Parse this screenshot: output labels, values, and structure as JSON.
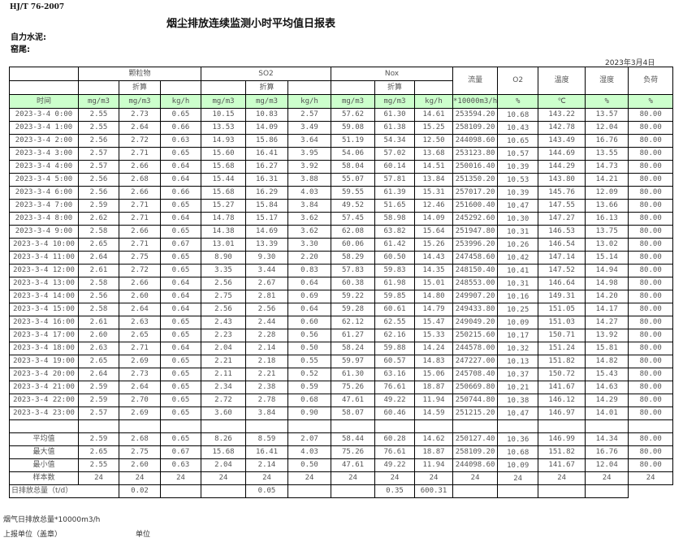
{
  "header": {
    "standard": "HJ/T  76-2007",
    "title": "烟尘排放连续监测小时平均值日报表",
    "company": "自力水泥:",
    "kiln": "窑尾:",
    "date": "2023年3月4日"
  },
  "table": {
    "groups": {
      "particulate": "颗粒物",
      "so2": "SO2",
      "nox": "Nox",
      "flow": "流量",
      "o2": "O2",
      "temp": "温度",
      "humidity": "湿度",
      "load": "负荷"
    },
    "converted_label": "折算",
    "units": [
      "时间",
      "mg/m3",
      "mg/m3",
      "kg/h",
      "mg/m3",
      "mg/m3",
      "kg/h",
      "mg/m3",
      "mg/m3",
      "kg/h",
      "*10000m3/h",
      "%",
      "℃",
      "%",
      "%"
    ],
    "rows": [
      [
        "2023-3-4 0:00",
        "2.55",
        "2.73",
        "0.65",
        "10.15",
        "10.83",
        "2.57",
        "57.62",
        "61.30",
        "14.61",
        "253594.20",
        "10.68",
        "143.22",
        "13.57",
        "80.00"
      ],
      [
        "2023-3-4 1:00",
        "2.55",
        "2.64",
        "0.66",
        "13.53",
        "14.09",
        "3.49",
        "59.08",
        "61.38",
        "15.25",
        "258109.20",
        "10.43",
        "142.78",
        "12.04",
        "80.00"
      ],
      [
        "2023-3-4 2:00",
        "2.56",
        "2.72",
        "0.63",
        "14.93",
        "15.86",
        "3.64",
        "51.19",
        "54.34",
        "12.50",
        "244098.60",
        "10.65",
        "143.49",
        "16.76",
        "80.00"
      ],
      [
        "2023-3-4 3:00",
        "2.57",
        "2.71",
        "0.65",
        "15.60",
        "16.41",
        "3.95",
        "54.06",
        "57.02",
        "13.68",
        "253123.80",
        "10.57",
        "144.69",
        "13.55",
        "80.00"
      ],
      [
        "2023-3-4 4:00",
        "2.57",
        "2.66",
        "0.64",
        "15.68",
        "16.27",
        "3.92",
        "58.04",
        "60.14",
        "14.51",
        "250016.40",
        "10.39",
        "144.29",
        "14.73",
        "80.00"
      ],
      [
        "2023-3-4 5:00",
        "2.56",
        "2.68",
        "0.64",
        "15.44",
        "16.31",
        "3.88",
        "55.07",
        "57.81",
        "13.84",
        "251350.20",
        "10.53",
        "143.80",
        "14.21",
        "80.00"
      ],
      [
        "2023-3-4 6:00",
        "2.56",
        "2.66",
        "0.66",
        "15.68",
        "16.29",
        "4.03",
        "59.55",
        "61.39",
        "15.31",
        "257017.20",
        "10.39",
        "145.76",
        "12.09",
        "80.00"
      ],
      [
        "2023-3-4 7:00",
        "2.59",
        "2.71",
        "0.65",
        "15.27",
        "15.84",
        "3.84",
        "49.52",
        "51.65",
        "12.46",
        "251600.40",
        "10.47",
        "147.55",
        "13.66",
        "80.00"
      ],
      [
        "2023-3-4 8:00",
        "2.62",
        "2.71",
        "0.64",
        "14.78",
        "15.17",
        "3.62",
        "57.45",
        "58.98",
        "14.09",
        "245292.60",
        "10.30",
        "147.27",
        "16.13",
        "80.00"
      ],
      [
        "2023-3-4 9:00",
        "2.58",
        "2.66",
        "0.65",
        "14.38",
        "14.69",
        "3.62",
        "62.08",
        "63.82",
        "15.64",
        "251947.80",
        "10.31",
        "146.53",
        "13.75",
        "80.00"
      ],
      [
        "2023-3-4 10:00",
        "2.65",
        "2.71",
        "0.67",
        "13.01",
        "13.39",
        "3.30",
        "60.06",
        "61.42",
        "15.26",
        "253996.20",
        "10.26",
        "146.54",
        "13.02",
        "80.00"
      ],
      [
        "2023-3-4 11:00",
        "2.64",
        "2.75",
        "0.65",
        "8.90",
        "9.30",
        "2.20",
        "58.29",
        "60.50",
        "14.43",
        "247458.60",
        "10.42",
        "147.14",
        "15.14",
        "80.00"
      ],
      [
        "2023-3-4 12:00",
        "2.61",
        "2.72",
        "0.65",
        "3.35",
        "3.44",
        "0.83",
        "57.83",
        "59.83",
        "14.35",
        "248150.40",
        "10.41",
        "147.52",
        "14.94",
        "80.00"
      ],
      [
        "2023-3-4 13:00",
        "2.58",
        "2.66",
        "0.64",
        "2.56",
        "2.67",
        "0.64",
        "60.38",
        "61.98",
        "15.01",
        "248553.00",
        "10.31",
        "146.64",
        "14.98",
        "80.00"
      ],
      [
        "2023-3-4 14:00",
        "2.56",
        "2.60",
        "0.64",
        "2.75",
        "2.81",
        "0.69",
        "59.22",
        "59.85",
        "14.80",
        "249907.20",
        "10.16",
        "149.31",
        "14.20",
        "80.00"
      ],
      [
        "2023-3-4 15:00",
        "2.58",
        "2.64",
        "0.64",
        "2.56",
        "2.56",
        "0.64",
        "59.28",
        "60.61",
        "14.79",
        "249433.80",
        "10.25",
        "151.05",
        "14.17",
        "80.00"
      ],
      [
        "2023-3-4 16:00",
        "2.61",
        "2.63",
        "0.65",
        "2.43",
        "2.44",
        "0.60",
        "62.12",
        "62.55",
        "15.47",
        "249049.20",
        "10.09",
        "151.03",
        "14.27",
        "80.00"
      ],
      [
        "2023-3-4 17:00",
        "2.60",
        "2.65",
        "0.65",
        "2.23",
        "2.28",
        "0.56",
        "61.27",
        "62.16",
        "15.33",
        "250215.60",
        "10.17",
        "150.71",
        "13.92",
        "80.00"
      ],
      [
        "2023-3-4 18:00",
        "2.63",
        "2.71",
        "0.64",
        "2.04",
        "2.14",
        "0.50",
        "58.24",
        "59.88",
        "14.24",
        "244578.00",
        "10.32",
        "151.24",
        "15.81",
        "80.00"
      ],
      [
        "2023-3-4 19:00",
        "2.65",
        "2.69",
        "0.65",
        "2.21",
        "2.18",
        "0.55",
        "59.97",
        "60.57",
        "14.83",
        "247227.00",
        "10.13",
        "151.82",
        "14.82",
        "80.00"
      ],
      [
        "2023-3-4 20:00",
        "2.64",
        "2.73",
        "0.65",
        "2.11",
        "2.21",
        "0.52",
        "61.30",
        "63.16",
        "15.06",
        "245708.40",
        "10.37",
        "150.72",
        "15.43",
        "80.00"
      ],
      [
        "2023-3-4 21:00",
        "2.59",
        "2.64",
        "0.65",
        "2.34",
        "2.38",
        "0.59",
        "75.26",
        "76.61",
        "18.87",
        "250669.80",
        "10.21",
        "141.67",
        "14.63",
        "80.00"
      ],
      [
        "2023-3-4 22:00",
        "2.59",
        "2.70",
        "0.65",
        "2.72",
        "2.78",
        "0.68",
        "47.61",
        "49.22",
        "11.94",
        "250744.80",
        "10.38",
        "146.12",
        "14.29",
        "80.00"
      ],
      [
        "2023-3-4 23:00",
        "2.57",
        "2.69",
        "0.65",
        "3.60",
        "3.84",
        "0.90",
        "58.07",
        "60.46",
        "14.59",
        "251215.20",
        "10.47",
        "146.97",
        "14.01",
        "80.00"
      ]
    ],
    "summary": [
      [
        "平均值",
        "2.59",
        "2.68",
        "0.65",
        "8.26",
        "8.59",
        "2.07",
        "58.44",
        "60.28",
        "14.62",
        "250127.40",
        "10.36",
        "146.99",
        "14.34",
        "80.00"
      ],
      [
        "最大值",
        "2.65",
        "2.75",
        "0.67",
        "15.68",
        "16.41",
        "4.03",
        "75.26",
        "76.61",
        "18.87",
        "258109.20",
        "10.68",
        "151.82",
        "16.76",
        "80.00"
      ],
      [
        "最小值",
        "2.55",
        "2.60",
        "0.63",
        "2.04",
        "2.14",
        "0.50",
        "47.61",
        "49.22",
        "11.94",
        "244098.60",
        "10.09",
        "141.67",
        "12.04",
        "80.00"
      ],
      [
        "样本数",
        "24",
        "24",
        "24",
        "24",
        "24",
        "24",
        "24",
        "24",
        "24",
        "24",
        "24",
        "24",
        "24",
        "24"
      ]
    ],
    "daily_total": {
      "label": "日排放总量（t/d）",
      "particulate_kg": "0.02",
      "so2_kg": "0.05",
      "nox_kg": "0.35",
      "flow": "600.31"
    }
  },
  "footer": {
    "flue_gas_total": "烟气日排放总量*10000m3/h",
    "reporting_unit": "上报单位（盖章）",
    "unit": "单位"
  },
  "colors": {
    "unit_row_bg": "#ccffcc"
  }
}
